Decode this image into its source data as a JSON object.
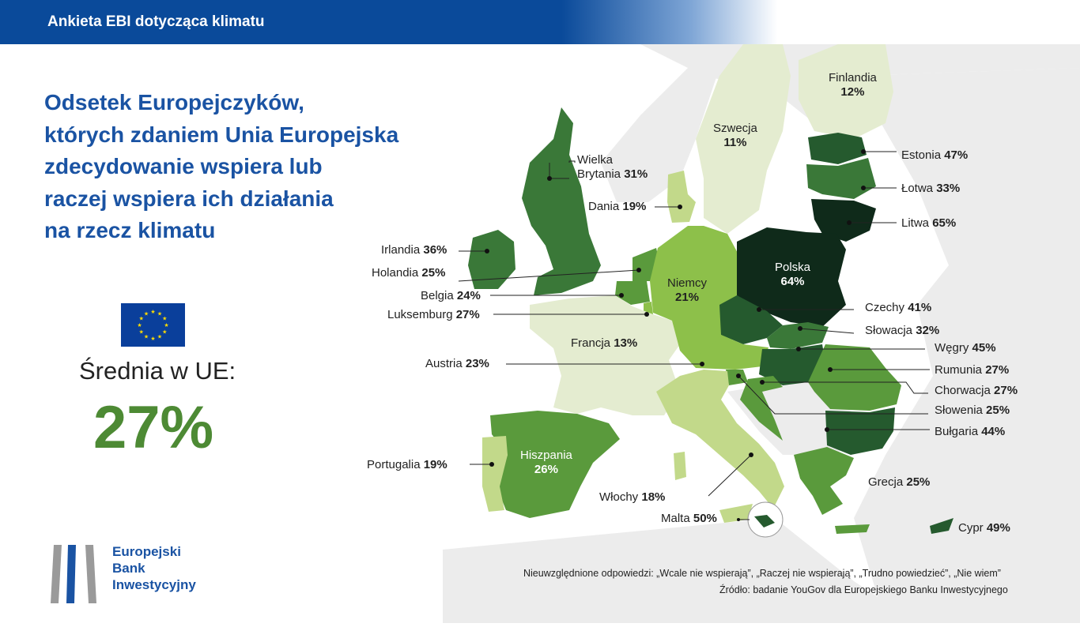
{
  "header": {
    "title": "Ankieta EBI dotycząca klimatu"
  },
  "headline": {
    "lines": [
      "Odsetek Europejczyków,",
      "których zdaniem Unia Europejska",
      "zdecydowanie wspiera lub",
      "raczej wspiera ich działania",
      "na rzecz klimatu"
    ]
  },
  "average": {
    "label": "Średnia w UE:",
    "value": "27%"
  },
  "logo": {
    "lines": [
      "Europejski",
      "Bank",
      "Inwestycyjny"
    ]
  },
  "countries": {
    "finlandia": {
      "name": "Finlandia",
      "value": "12%"
    },
    "szwecja": {
      "name": "Szwecja",
      "value": "11%"
    },
    "estonia": {
      "name": "Estonia",
      "value": "47%"
    },
    "lotwa": {
      "name": "Łotwa",
      "value": "33%"
    },
    "litwa": {
      "name": "Litwa",
      "value": "65%"
    },
    "wielka_brytania": {
      "name1": "Wielka",
      "name2": "Brytania",
      "value": "31%"
    },
    "dania": {
      "name": "Dania",
      "value": "19%"
    },
    "irlandia": {
      "name": "Irlandia",
      "value": "36%"
    },
    "holandia": {
      "name": "Holandia",
      "value": "25%"
    },
    "belgia": {
      "name": "Belgia",
      "value": "24%"
    },
    "luksemburg": {
      "name": "Luksemburg",
      "value": "27%"
    },
    "niemcy": {
      "name": "Niemcy",
      "value": "21%"
    },
    "polska": {
      "name": "Polska",
      "value": "64%"
    },
    "czechy": {
      "name": "Czechy",
      "value": "41%"
    },
    "slowacja": {
      "name": "Słowacja",
      "value": "32%"
    },
    "wegry": {
      "name": "Węgry",
      "value": "45%"
    },
    "rumunia": {
      "name": "Rumunia",
      "value": "27%"
    },
    "chorwacja": {
      "name": "Chorwacja",
      "value": "27%"
    },
    "slowenia": {
      "name": "Słowenia",
      "value": "25%"
    },
    "bulgaria": {
      "name": "Bułgaria",
      "value": "44%"
    },
    "francja": {
      "name": "Francja",
      "value": "13%"
    },
    "austria": {
      "name": "Austria",
      "value": "23%"
    },
    "hiszpania": {
      "name": "Hiszpania",
      "value": "26%"
    },
    "portugalia": {
      "name": "Portugalia",
      "value": "19%"
    },
    "wlochy": {
      "name": "Włochy",
      "value": "18%"
    },
    "malta": {
      "name": "Malta",
      "value": "50%"
    },
    "grecja": {
      "name": "Grecja",
      "value": "25%"
    },
    "cypr": {
      "name": "Cypr",
      "value": "49%"
    }
  },
  "colors": {
    "header": "#0a4a9a",
    "headline": "#1a53a3",
    "average": "#4d8a34",
    "scale": [
      "#e4ecd0",
      "#c2d98a",
      "#8dc04a",
      "#5a9a3c",
      "#3a7838",
      "#255a2e",
      "#0f2a1a"
    ]
  },
  "notes": {
    "excluded": "Nieuwzględnione odpowiedzi: „Wcale nie wspierają”, „Raczej nie wspierają”, „Trudno powiedzieć”, „Nie wiem”",
    "source": "Źródło: badanie YouGov dla Europejskiego Banku Inwestycyjnego"
  }
}
